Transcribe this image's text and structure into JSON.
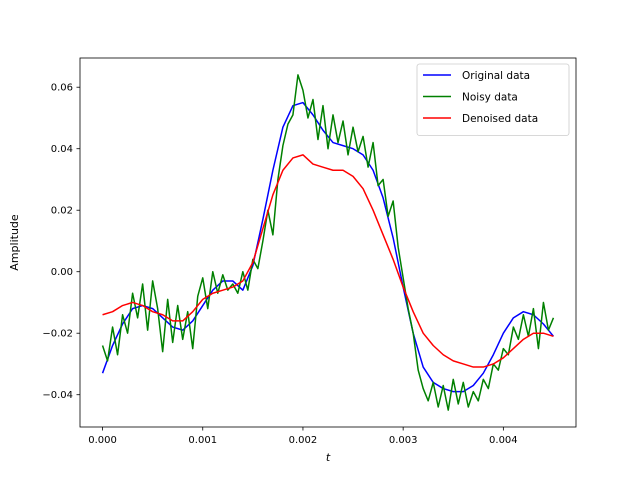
{
  "chart_data": {
    "type": "line",
    "title": "",
    "xlabel": "t",
    "ylabel": "Amplitude",
    "xlim": [
      -0.000225,
      0.004725
    ],
    "ylim": [
      -0.0505,
      0.0695
    ],
    "x_ticks": [
      0.0,
      0.001,
      0.002,
      0.003,
      0.004
    ],
    "x_tick_labels": [
      "0.000",
      "0.001",
      "0.002",
      "0.003",
      "0.004"
    ],
    "y_ticks": [
      -0.04,
      -0.02,
      0.0,
      0.02,
      0.04,
      0.06
    ],
    "y_tick_labels": [
      "−0.04",
      "−0.02",
      "0.00",
      "0.02",
      "0.04",
      "0.06"
    ],
    "grid": false,
    "legend_position": "top-right",
    "series": [
      {
        "name": "Original data",
        "color": "#0000ff",
        "x": [
          0,
          0.0001,
          0.0002,
          0.0003,
          0.0004,
          0.0005,
          0.0006,
          0.0007,
          0.0008,
          0.0009,
          0.001,
          0.0011,
          0.0012,
          0.0013,
          0.0014,
          0.0015,
          0.0016,
          0.0017,
          0.0018,
          0.0019,
          0.002,
          0.0021,
          0.0022,
          0.0023,
          0.0024,
          0.0025,
          0.0026,
          0.0027,
          0.0028,
          0.0029,
          0.003,
          0.0031,
          0.0032,
          0.0033,
          0.0034,
          0.0035,
          0.0036,
          0.0037,
          0.0038,
          0.0039,
          0.004,
          0.0041,
          0.0042,
          0.0043,
          0.0044,
          0.0045
        ],
        "values": [
          -0.033,
          -0.024,
          -0.017,
          -0.012,
          -0.011,
          -0.012,
          -0.015,
          -0.018,
          -0.019,
          -0.016,
          -0.011,
          -0.006,
          -0.003,
          -0.003,
          -0.006,
          0.002,
          0.017,
          0.033,
          0.047,
          0.054,
          0.055,
          0.051,
          0.046,
          0.042,
          0.041,
          0.04,
          0.038,
          0.033,
          0.024,
          0.011,
          -0.005,
          -0.02,
          -0.031,
          -0.036,
          -0.038,
          -0.039,
          -0.039,
          -0.037,
          -0.033,
          -0.027,
          -0.02,
          -0.015,
          -0.013,
          -0.014,
          -0.017,
          -0.021
        ]
      },
      {
        "name": "Noisy data",
        "color": "#008000",
        "x": [
          0,
          5e-05,
          0.0001,
          0.00015,
          0.0002,
          0.00025,
          0.0003,
          0.00035,
          0.0004,
          0.00045,
          0.0005,
          0.00055,
          0.0006,
          0.00065,
          0.0007,
          0.00075,
          0.0008,
          0.00085,
          0.0009,
          0.00095,
          0.001,
          0.00105,
          0.0011,
          0.00115,
          0.0012,
          0.00125,
          0.0013,
          0.00135,
          0.0014,
          0.00145,
          0.0015,
          0.00155,
          0.0016,
          0.00165,
          0.0017,
          0.00175,
          0.0018,
          0.00185,
          0.0019,
          0.00195,
          0.002,
          0.00205,
          0.0021,
          0.00215,
          0.0022,
          0.00225,
          0.0023,
          0.00235,
          0.0024,
          0.00245,
          0.0025,
          0.00255,
          0.0026,
          0.00265,
          0.0027,
          0.00275,
          0.0028,
          0.00285,
          0.0029,
          0.00295,
          0.003,
          0.00305,
          0.0031,
          0.00315,
          0.0032,
          0.00325,
          0.0033,
          0.00335,
          0.0034,
          0.00345,
          0.0035,
          0.00355,
          0.0036,
          0.00365,
          0.0037,
          0.00375,
          0.0038,
          0.00385,
          0.0039,
          0.00395,
          0.004,
          0.00405,
          0.0041,
          0.00415,
          0.0042,
          0.00425,
          0.0043,
          0.00435,
          0.0044,
          0.00445,
          0.0045
        ],
        "values": [
          -0.024,
          -0.029,
          -0.018,
          -0.027,
          -0.014,
          -0.02,
          -0.007,
          -0.015,
          -0.004,
          -0.019,
          -0.003,
          -0.012,
          -0.026,
          -0.009,
          -0.023,
          -0.011,
          -0.022,
          -0.013,
          -0.025,
          -0.008,
          -0.002,
          -0.012,
          0.0,
          -0.007,
          -0.001,
          -0.006,
          -0.004,
          -0.007,
          0.0,
          -0.006,
          0.004,
          0.001,
          0.01,
          0.02,
          0.012,
          0.03,
          0.041,
          0.048,
          0.051,
          0.064,
          0.059,
          0.05,
          0.056,
          0.043,
          0.054,
          0.04,
          0.051,
          0.042,
          0.049,
          0.038,
          0.047,
          0.039,
          0.044,
          0.034,
          0.042,
          0.028,
          0.03,
          0.018,
          0.023,
          0.008,
          -0.002,
          -0.012,
          -0.02,
          -0.032,
          -0.038,
          -0.042,
          -0.036,
          -0.044,
          -0.037,
          -0.045,
          -0.035,
          -0.043,
          -0.036,
          -0.044,
          -0.039,
          -0.042,
          -0.035,
          -0.038,
          -0.03,
          -0.032,
          -0.025,
          -0.027,
          -0.018,
          -0.022,
          -0.014,
          -0.021,
          -0.012,
          -0.025,
          -0.01,
          -0.019,
          -0.015
        ]
      },
      {
        "name": "Denoised data",
        "color": "#ff0000",
        "x": [
          0,
          0.0001,
          0.0002,
          0.0003,
          0.0004,
          0.0005,
          0.0006,
          0.0007,
          0.0008,
          0.0009,
          0.001,
          0.0011,
          0.0012,
          0.0013,
          0.0014,
          0.0015,
          0.0016,
          0.0017,
          0.0018,
          0.0019,
          0.002,
          0.0021,
          0.0022,
          0.0023,
          0.0024,
          0.0025,
          0.0026,
          0.0027,
          0.0028,
          0.0029,
          0.003,
          0.0031,
          0.0032,
          0.0033,
          0.0034,
          0.0035,
          0.0036,
          0.0037,
          0.0038,
          0.0039,
          0.004,
          0.0041,
          0.0042,
          0.0043,
          0.0044,
          0.0045
        ],
        "values": [
          -0.014,
          -0.013,
          -0.011,
          -0.01,
          -0.011,
          -0.013,
          -0.014,
          -0.016,
          -0.016,
          -0.013,
          -0.009,
          -0.007,
          -0.006,
          -0.005,
          -0.003,
          0.003,
          0.014,
          0.025,
          0.033,
          0.037,
          0.038,
          0.035,
          0.034,
          0.033,
          0.033,
          0.031,
          0.027,
          0.02,
          0.012,
          0.004,
          -0.005,
          -0.013,
          -0.02,
          -0.024,
          -0.027,
          -0.029,
          -0.03,
          -0.031,
          -0.031,
          -0.03,
          -0.028,
          -0.025,
          -0.022,
          -0.02,
          -0.02,
          -0.021
        ]
      }
    ]
  }
}
